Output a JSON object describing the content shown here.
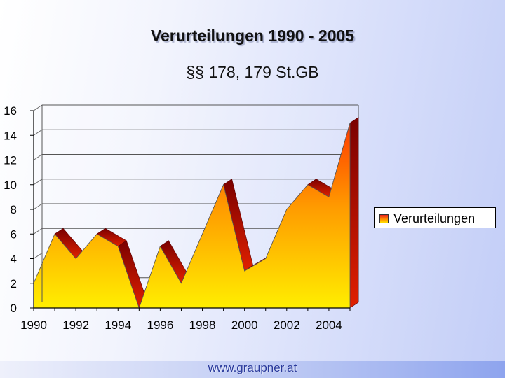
{
  "title": "Verurteilungen 1990 - 2005",
  "subtitle": "§§ 178, 179 St.GB",
  "footer": "www.graupner.at",
  "colors": {
    "front_top": "#ff3a00",
    "front_mid": "#ff9a00",
    "front_bottom": "#ffee00",
    "side_dark": "#a00000",
    "side_light": "#ff5a1a"
  },
  "chart_data": {
    "type": "area",
    "title": "Verurteilungen 1990 - 2005",
    "subtitle": "§§ 178, 179 St.GB",
    "xlabel": "",
    "ylabel": "",
    "x": [
      1990,
      1991,
      1992,
      1993,
      1994,
      1995,
      1996,
      1997,
      1998,
      1999,
      2000,
      2001,
      2002,
      2003,
      2004,
      2005
    ],
    "x_tick_labels": [
      "1990",
      "1992",
      "1994",
      "1996",
      "1998",
      "2000",
      "2002",
      "2004"
    ],
    "y_ticks": [
      "0",
      "2",
      "4",
      "6",
      "8",
      "10",
      "12",
      "14",
      "16"
    ],
    "ylim": [
      0,
      16
    ],
    "grid": true,
    "three_d": true,
    "legend_position": "right",
    "series": [
      {
        "name": "Verurteilungen",
        "values": [
          2,
          6,
          4,
          6,
          5,
          0,
          5,
          2,
          6,
          10,
          3,
          4,
          8,
          10,
          9,
          15
        ]
      }
    ]
  }
}
